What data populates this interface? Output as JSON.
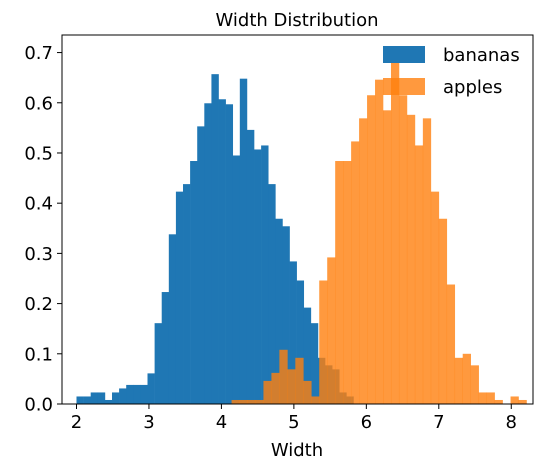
{
  "chart_data": {
    "type": "bar",
    "title": "Width Distribution",
    "xlabel": "Width",
    "ylabel": "",
    "xlim": [
      1.8,
      8.3
    ],
    "ylim": [
      0,
      0.735
    ],
    "xticks": [
      2,
      3,
      4,
      5,
      6,
      7,
      8
    ],
    "yticks": [
      0.0,
      0.1,
      0.2,
      0.3,
      0.4,
      0.5,
      0.6,
      0.7
    ],
    "ytick_labels": [
      "0.0",
      "0.1",
      "0.2",
      "0.3",
      "0.4",
      "0.5",
      "0.6",
      "0.7"
    ],
    "grid": false,
    "legend_position": "upper right",
    "series": [
      {
        "name": "bananas",
        "color": "#1f77b4",
        "opacity": 1.0,
        "bin_start": 2.0,
        "bin_width": 0.098,
        "values": [
          0.015,
          0.015,
          0.023,
          0.023,
          0.008,
          0.023,
          0.031,
          0.038,
          0.038,
          0.038,
          0.061,
          0.161,
          0.223,
          0.338,
          0.423,
          0.438,
          0.484,
          0.553,
          0.599,
          0.657,
          0.607,
          0.597,
          0.495,
          0.648,
          0.546,
          0.507,
          0.515,
          0.438,
          0.369,
          0.354,
          0.284,
          0.246,
          0.192,
          0.161,
          0.092,
          0.077,
          0.069,
          0.023,
          0.015
        ]
      },
      {
        "name": "apples",
        "color": "#ff7f0e",
        "opacity": 0.8,
        "bin_start": 4.14,
        "bin_width": 0.11,
        "values": [
          0.008,
          0.008,
          0.008,
          0.008,
          0.046,
          0.062,
          0.108,
          0.069,
          0.092,
          0.046,
          0.015,
          0.246,
          0.292,
          0.484,
          0.484,
          0.523,
          0.569,
          0.615,
          0.646,
          0.585,
          0.7,
          0.615,
          0.576,
          0.515,
          0.569,
          0.423,
          0.369,
          0.238,
          0.092,
          0.1,
          0.077,
          0.023,
          0.023,
          0.008,
          0.0,
          0.015,
          0.008
        ]
      }
    ]
  }
}
